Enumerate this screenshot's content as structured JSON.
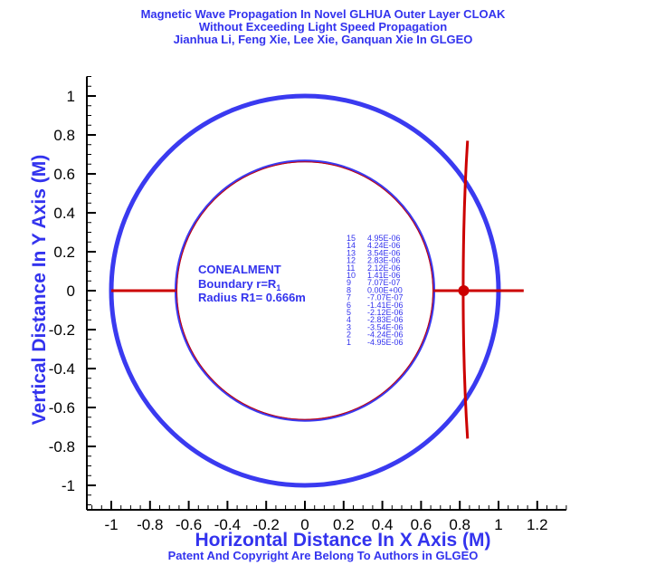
{
  "title_lines": [
    "Magnetic Wave Propagation In Novel GLHUA Outer Layer  CLOAK",
    "Without Exceeding Light Speed Propagation",
    "Jianhua Li, Feng Xie, Lee Xie, Ganquan Xie In GLGEO"
  ],
  "footer": "Patent And Copyright Are Belong To Authors in GLGEO",
  "colors": {
    "text": "#3333ee",
    "outer_circle": "#3a3af0",
    "wave": "#cc0000",
    "axes": "#000000"
  },
  "annotation": {
    "line1": "CONEALMENT",
    "line2_prefix": "Boundary r=R",
    "line2_sub": "1",
    "line3": "Radius R1= 0.666m"
  },
  "chart_data": {
    "type": "contour",
    "xlabel": "Horizontal Distance In X Axis (M)",
    "ylabel": "Vertical Distance In Y Axis (M)",
    "xlim": [
      -1.1,
      1.35
    ],
    "ylim": [
      -1.1,
      1.1
    ],
    "x_ticks": [
      -1,
      -0.8,
      -0.6,
      -0.4,
      -0.2,
      0,
      0.2,
      0.4,
      0.6,
      0.8,
      1,
      1.2
    ],
    "y_ticks": [
      1,
      0.8,
      0.6,
      0.4,
      0.2,
      0,
      -0.2,
      -0.4,
      -0.6,
      -0.8,
      -1
    ],
    "outer_circle_radius": 1.0,
    "inner_circle_radius": 0.666,
    "wave_source": [
      0.82,
      0.0
    ],
    "wave_front": {
      "vertical": [
        [
          0.84,
          0.77
        ],
        [
          0.81,
          0.3
        ],
        [
          0.81,
          -0.3
        ],
        [
          0.84,
          -0.76
        ]
      ],
      "horizontal_left": [
        [
          -1.0,
          0.0
        ],
        [
          -0.666,
          0.0
        ]
      ],
      "horizontal_right": [
        [
          0.666,
          0.0
        ],
        [
          1.13,
          0.0
        ]
      ]
    },
    "legend_levels": [
      {
        "level": "15",
        "value": "4.95E-06"
      },
      {
        "level": "14",
        "value": "4.24E-06"
      },
      {
        "level": "13",
        "value": "3.54E-06"
      },
      {
        "level": "12",
        "value": "2.83E-06"
      },
      {
        "level": "11",
        "value": "2.12E-06"
      },
      {
        "level": "10",
        "value": "1.41E-06"
      },
      {
        "level": "9",
        "value": "7.07E-07"
      },
      {
        "level": "8",
        "value": "0.00E+00"
      },
      {
        "level": "7",
        "value": "-7.07E-07"
      },
      {
        "level": "6",
        "value": "-1.41E-06"
      },
      {
        "level": "5",
        "value": "-2.12E-06"
      },
      {
        "level": "4",
        "value": "-2.83E-06"
      },
      {
        "level": "3",
        "value": "-3.54E-06"
      },
      {
        "level": "2",
        "value": "-4.24E-06"
      },
      {
        "level": "1",
        "value": "-4.95E-06"
      }
    ]
  }
}
